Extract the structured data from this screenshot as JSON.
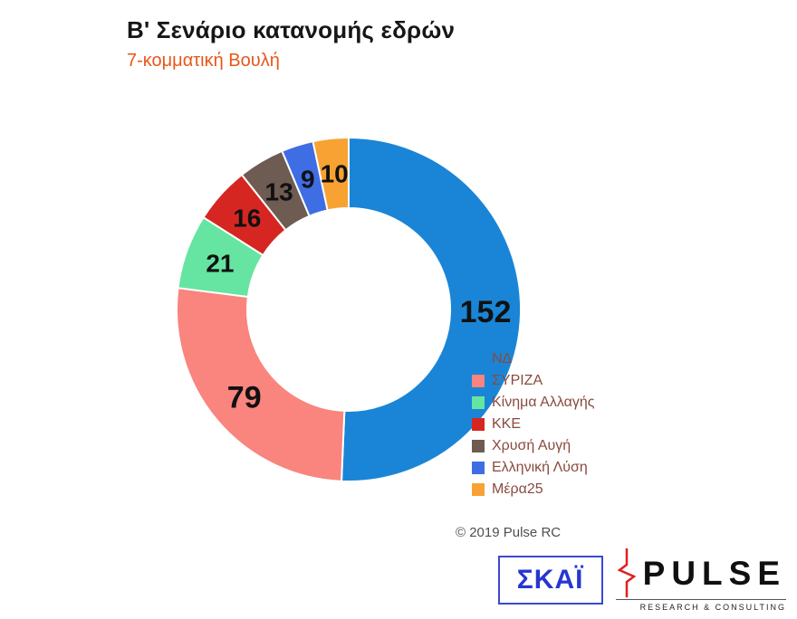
{
  "header": {
    "title": "Β' Σενάριο κατανομής εδρών",
    "subtitle": "7-κομματική Βουλή"
  },
  "chart_data": {
    "type": "pie",
    "variant": "donut",
    "title": "Β' Σενάριο κατανομής εδρών",
    "subtitle": "7-κομματική Βουλή",
    "total": 300,
    "legend_position": "right",
    "label_color": "#111111",
    "slices": [
      {
        "label": "ΝΔ",
        "value": 152,
        "color": "#1a85d6",
        "marker_visible": false
      },
      {
        "label": "ΣΥΡΙΖΑ",
        "value": 79,
        "color": "#fa847e",
        "marker_visible": true
      },
      {
        "label": "Κίνημα Αλλαγής",
        "value": 21,
        "color": "#65e5a1",
        "marker_visible": true
      },
      {
        "label": "ΚΚΕ",
        "value": 16,
        "color": "#d62622",
        "marker_visible": true
      },
      {
        "label": "Χρυσή Αυγή",
        "value": 13,
        "color": "#6e5b51",
        "marker_visible": true
      },
      {
        "label": "Ελληνική Λύση",
        "value": 9,
        "color": "#3f6de4",
        "marker_visible": true
      },
      {
        "label": "Μέρα25",
        "value": 10,
        "color": "#f8a233",
        "marker_visible": true
      }
    ]
  },
  "legend": {
    "text_color": "#8a4a3e"
  },
  "footer": {
    "copyright": "© 2019 Pulse RC"
  },
  "logos": {
    "skai": "ΣΚΑΪ",
    "pulse": "PULSE",
    "pulse_sub": "RESEARCH & CONSULTING",
    "pulse_accent_color": "#e02020"
  }
}
